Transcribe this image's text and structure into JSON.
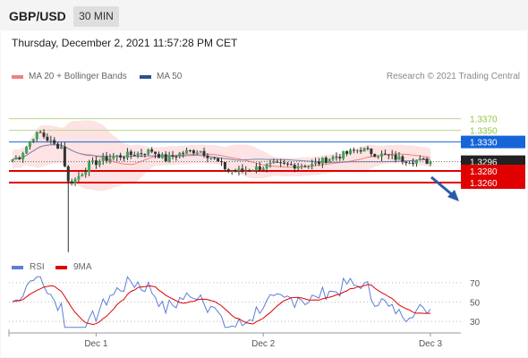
{
  "header": {
    "symbol": "GBP/USD",
    "interval": "30 MIN"
  },
  "timestamp": "Thursday, December 2, 2021 11:57:28 PM CET",
  "legend": {
    "ma": {
      "label": "MA 20 + Bollinger Bands",
      "color": "#f08080"
    },
    "ma50": {
      "label": "MA 50",
      "color": "#2d4f8f"
    },
    "credit": "Research © 2021 Trading Central"
  },
  "rsi_legend": {
    "rsi": {
      "label": "RSI",
      "color": "#5b7fd6"
    },
    "ma9": {
      "label": "9MA",
      "color": "#e00000"
    }
  },
  "chart_data": {
    "type": "candlestick",
    "price_ylim": [
      1.3135,
      1.3405
    ],
    "x_ticks": [
      {
        "label": "Dec 1",
        "index": 24
      },
      {
        "label": "Dec 2",
        "index": 72
      },
      {
        "label": "Dec 3",
        "index": 120
      }
    ],
    "levels": [
      {
        "value": 1.337,
        "label": "1.3370",
        "color": "#8cc63f",
        "style": "text"
      },
      {
        "value": 1.335,
        "label": "1.3350",
        "color": "#8cc63f",
        "style": "text"
      },
      {
        "value": 1.333,
        "label": "1.3330",
        "color": "#1565d8",
        "style": "box"
      },
      {
        "value": 1.3296,
        "label": "1.3296",
        "color": "#222222",
        "style": "box"
      },
      {
        "value": 1.328,
        "label": "1.3280",
        "color": "#e00000",
        "style": "box"
      },
      {
        "value": 1.326,
        "label": "1.3260",
        "color": "#e00000",
        "style": "box"
      }
    ],
    "rsi_ylim": [
      20,
      80
    ],
    "rsi_levels": [
      {
        "value": 70,
        "label": "70"
      },
      {
        "value": 50,
        "label": "50"
      },
      {
        "value": 30,
        "label": "30"
      }
    ]
  }
}
